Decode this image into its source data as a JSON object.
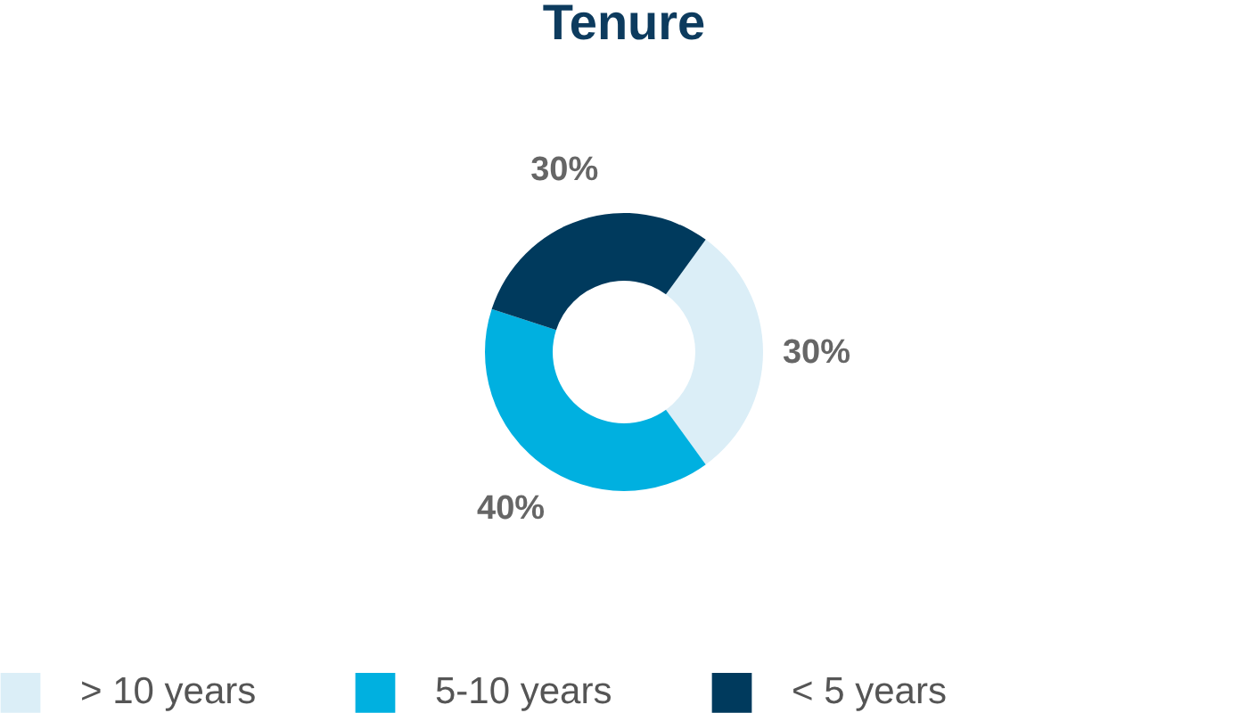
{
  "chart_data": {
    "type": "donut",
    "title": "Tenure",
    "categories": [
      "> 10 years",
      "5-10 years",
      "< 5 years"
    ],
    "values": [
      30,
      40,
      30
    ],
    "colors": [
      "#dbeef7",
      "#00b0e0",
      "#003a5d"
    ],
    "value_labels": [
      "30%",
      "40%",
      "30%"
    ],
    "legend": "bottom"
  }
}
